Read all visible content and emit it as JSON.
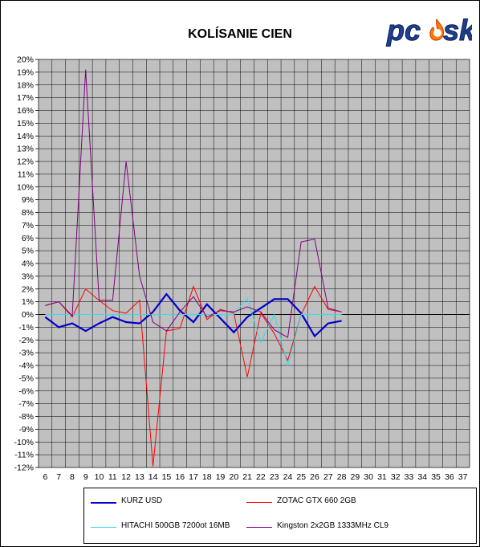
{
  "chart_data": {
    "type": "line",
    "title": "KOLÍSANIE CIEN",
    "x": [
      6,
      7,
      8,
      9,
      10,
      11,
      12,
      13,
      14,
      15,
      16,
      17,
      18,
      19,
      20,
      21,
      22,
      23,
      24,
      25,
      26,
      27,
      28,
      29,
      30,
      31,
      32,
      33,
      34,
      35,
      36,
      37
    ],
    "ylim": [
      -12,
      20
    ],
    "ytick_step": 1,
    "y_unit": "%",
    "grid": true,
    "legend_position": "bottom",
    "series": [
      {
        "name": "KURZ USD",
        "color": "#0000cc",
        "width": 2.2,
        "points": [
          [
            6,
            -0.2
          ],
          [
            7,
            -1.0
          ],
          [
            8,
            -0.7
          ],
          [
            9,
            -1.3
          ],
          [
            10,
            -0.7
          ],
          [
            11,
            -0.2
          ],
          [
            12,
            -0.6
          ],
          [
            13,
            -0.7
          ],
          [
            14,
            0.2
          ],
          [
            15,
            1.6
          ],
          [
            16,
            0.3
          ],
          [
            17,
            -0.6
          ],
          [
            18,
            0.8
          ],
          [
            19,
            -0.3
          ],
          [
            20,
            -1.4
          ],
          [
            21,
            -0.2
          ],
          [
            22,
            0.5
          ],
          [
            23,
            1.2
          ],
          [
            24,
            1.2
          ],
          [
            25,
            0.1
          ],
          [
            26,
            -1.7
          ],
          [
            27,
            -0.7
          ],
          [
            28,
            -0.5
          ]
        ]
      },
      {
        "name": "ZOTAC GTX 660 2GB",
        "color": "#ff0000",
        "width": 1,
        "points": [
          [
            6,
            0.7
          ],
          [
            7,
            1.0
          ],
          [
            8,
            -0.2
          ],
          [
            9,
            2.0
          ],
          [
            10,
            1.1
          ],
          [
            11,
            0.3
          ],
          [
            12,
            0.1
          ],
          [
            13,
            1.1
          ],
          [
            14,
            -11.9
          ],
          [
            15,
            -1.3
          ],
          [
            16,
            -1.1
          ],
          [
            17,
            2.2
          ],
          [
            18,
            -0.4
          ],
          [
            19,
            0.4
          ],
          [
            20,
            0.1
          ],
          [
            21,
            -4.9
          ],
          [
            22,
            0.1
          ],
          [
            23,
            -1.5
          ],
          [
            24,
            -3.6
          ],
          [
            25,
            0.0
          ],
          [
            26,
            2.2
          ],
          [
            27,
            0.4
          ],
          [
            28,
            0.2
          ]
        ]
      },
      {
        "name": "HITACHI 500GB 7200ot 16MB",
        "color": "#33ddee",
        "width": 1,
        "points": [
          [
            6,
            0.0
          ],
          [
            7,
            0.0
          ],
          [
            8,
            0.0
          ],
          [
            9,
            0.0
          ],
          [
            10,
            0.0
          ],
          [
            11,
            0.0
          ],
          [
            12,
            0.0
          ],
          [
            13,
            0.0
          ],
          [
            14,
            0.0
          ],
          [
            15,
            0.0
          ],
          [
            16,
            0.0
          ],
          [
            17,
            0.0
          ],
          [
            18,
            0.0
          ],
          [
            19,
            0.0
          ],
          [
            20,
            0.0
          ],
          [
            21,
            1.3
          ],
          [
            22,
            -2.2
          ],
          [
            23,
            0.0
          ],
          [
            24,
            -4.0
          ],
          [
            25,
            0.0
          ],
          [
            26,
            0.0
          ],
          [
            27,
            0.0
          ],
          [
            28,
            0.0
          ]
        ]
      },
      {
        "name": "Kingston 2x2GB 1333MHz CL9",
        "color": "#800080",
        "width": 1,
        "points": [
          [
            6,
            0.7
          ],
          [
            7,
            1.0
          ],
          [
            8,
            -0.1
          ],
          [
            9,
            19.2
          ],
          [
            10,
            1.1
          ],
          [
            11,
            1.1
          ],
          [
            12,
            12.0
          ],
          [
            13,
            3.0
          ],
          [
            14,
            -0.6
          ],
          [
            15,
            -1.3
          ],
          [
            16,
            0.2
          ],
          [
            17,
            1.4
          ],
          [
            18,
            -0.2
          ],
          [
            19,
            0.3
          ],
          [
            20,
            0.2
          ],
          [
            21,
            0.6
          ],
          [
            22,
            0.2
          ],
          [
            23,
            -1.2
          ],
          [
            24,
            -1.8
          ],
          [
            25,
            5.7
          ],
          [
            26,
            5.9
          ],
          [
            27,
            0.5
          ],
          [
            28,
            0.2
          ]
        ]
      }
    ]
  }
}
